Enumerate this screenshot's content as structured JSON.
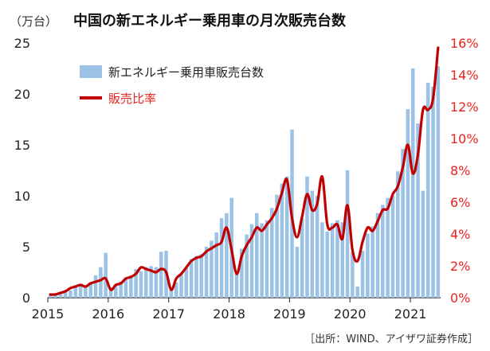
{
  "chart_data": {
    "type": "bar",
    "title": "中国の新エネルギー乗用車の月次販売台数",
    "unit_label": "（万台）",
    "source": "［出所：WIND、アイザワ証券作成］",
    "x_ticks": [
      "2015",
      "2016",
      "2017",
      "2018",
      "2019",
      "2020",
      "2021"
    ],
    "y_left": {
      "ylim": [
        0,
        25
      ],
      "ticks": [
        "0",
        "5",
        "10",
        "15",
        "20",
        "25"
      ]
    },
    "y_right": {
      "ylim": [
        0,
        16
      ],
      "ticks": [
        "0%",
        "2%",
        "4%",
        "6%",
        "8%",
        "10%",
        "12%",
        "14%",
        "16%"
      ]
    },
    "legend": {
      "position": "top-left"
    },
    "colors": {
      "bar": "#9cc2e5",
      "line": "#c00000",
      "right_axis": "#e8221f"
    },
    "series": [
      {
        "name": "新エネルギー乗用車販売台数",
        "kind": "bar",
        "axis": "left",
        "start": "2015-01",
        "values": [
          0.3,
          0.4,
          0.5,
          0.6,
          0.7,
          1.2,
          1.2,
          1.1,
          1.5,
          2.2,
          3.0,
          4.4,
          1.0,
          1.3,
          1.6,
          2.0,
          2.2,
          2.8,
          2.6,
          3.0,
          3.1,
          3.0,
          4.5,
          4.6,
          0.8,
          1.5,
          2.3,
          3.0,
          3.8,
          4.1,
          4.3,
          5.0,
          5.6,
          6.4,
          7.8,
          8.3,
          9.8,
          2.3,
          4.8,
          6.2,
          7.2,
          8.3,
          7.3,
          7.6,
          8.8,
          10.1,
          11.2,
          11.9,
          16.5,
          5.0,
          7.8,
          11.9,
          10.5,
          10.0,
          7.4,
          6.5,
          7.3,
          7.6,
          7.4,
          12.5,
          4.5,
          1.1,
          4.6,
          6.3,
          7.0,
          8.3,
          9.1,
          9.8,
          10.0,
          12.4,
          14.6,
          18.5,
          22.5,
          17.1,
          10.5,
          21.1,
          20.7,
          22.7
        ]
      },
      {
        "name": "販売比率",
        "kind": "line",
        "axis": "right",
        "start": "2015-01",
        "values": [
          0.2,
          0.2,
          0.3,
          0.4,
          0.6,
          0.7,
          0.8,
          0.7,
          0.9,
          1.0,
          1.1,
          1.2,
          0.5,
          0.8,
          0.9,
          1.2,
          1.3,
          1.5,
          1.9,
          1.8,
          1.7,
          1.6,
          1.8,
          1.6,
          0.5,
          1.2,
          1.5,
          1.9,
          2.3,
          2.5,
          2.6,
          2.9,
          3.1,
          3.3,
          3.5,
          4.4,
          3.0,
          1.5,
          2.6,
          3.3,
          3.8,
          4.4,
          4.2,
          4.6,
          5.0,
          5.6,
          6.6,
          7.4,
          5.0,
          3.8,
          5.1,
          6.5,
          5.5,
          5.9,
          7.6,
          4.6,
          4.4,
          4.6,
          3.7,
          5.8,
          3.0,
          2.3,
          3.5,
          4.4,
          4.2,
          4.8,
          5.5,
          5.6,
          6.5,
          7.0,
          8.2,
          9.6,
          7.8,
          9.0,
          11.8,
          11.8,
          12.5,
          15.7
        ]
      }
    ]
  }
}
